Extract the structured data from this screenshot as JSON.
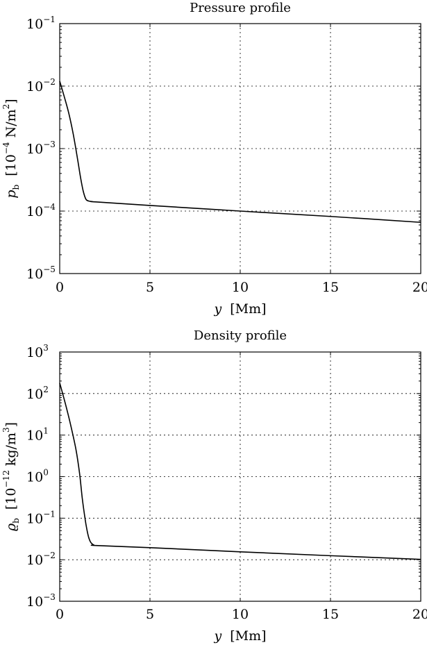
{
  "chart_data": [
    {
      "type": "line",
      "title": "Pressure profile",
      "xlabel": "y",
      "xlabel_unit": "[Mm]",
      "ylabel_symbol": "p",
      "ylabel_subscript": "b",
      "ylabel_unit_prefix": "[10",
      "ylabel_unit_exp": "−4",
      "ylabel_unit_mid": " N/m",
      "ylabel_unit_exp2": "2",
      "ylabel_unit_suffix": "]",
      "yscale": "log",
      "xlim": [
        0,
        20
      ],
      "ylim_exp": [
        -5,
        -1
      ],
      "grid": true,
      "xticks": [
        0,
        5,
        10,
        15,
        20
      ],
      "yticks": [
        {
          "base": "10",
          "exp": "−5",
          "value": -5
        },
        {
          "base": "10",
          "exp": "−4",
          "value": -4
        },
        {
          "base": "10",
          "exp": "−3",
          "value": -3
        },
        {
          "base": "10",
          "exp": "−2",
          "value": -2
        },
        {
          "base": "10",
          "exp": "−1",
          "value": -1
        }
      ],
      "series": [
        {
          "x": [
            0,
            0.25,
            0.5,
            0.75,
            1.0,
            1.15,
            1.3,
            1.45,
            1.6,
            1.8,
            2,
            5,
            10,
            15,
            20
          ],
          "y": [
            0.012,
            0.0068,
            0.0037,
            0.0017,
            0.00065,
            0.00035,
            0.00021,
            0.000155,
            0.000145,
            0.000142,
            0.00014,
            0.000123,
            0.0001,
            8.2e-05,
            6.6e-05
          ]
        }
      ]
    },
    {
      "type": "line",
      "title": "Density profile",
      "xlabel": "y",
      "xlabel_unit": "[Mm]",
      "ylabel_symbol": "ϱ",
      "ylabel_subscript": "b",
      "ylabel_unit_prefix": "[10",
      "ylabel_unit_exp": "−12",
      "ylabel_unit_mid": " kg/m",
      "ylabel_unit_exp2": "3",
      "ylabel_unit_suffix": "]",
      "yscale": "log",
      "xlim": [
        0,
        20
      ],
      "ylim_exp": [
        -3,
        3
      ],
      "grid": true,
      "xticks": [
        0,
        5,
        10,
        15,
        20
      ],
      "yticks": [
        {
          "base": "10",
          "exp": "−3",
          "value": -3
        },
        {
          "base": "10",
          "exp": "−2",
          "value": -2
        },
        {
          "base": "10",
          "exp": "−1",
          "value": -1
        },
        {
          "base": "10",
          "exp": "0",
          "value": 0
        },
        {
          "base": "10",
          "exp": "1",
          "value": 1
        },
        {
          "base": "10",
          "exp": "2",
          "value": 2
        },
        {
          "base": "10",
          "exp": "3",
          "value": 3
        }
      ],
      "series": [
        {
          "x": [
            0,
            0.3,
            0.6,
            0.9,
            1.1,
            1.25,
            1.4,
            1.5,
            1.6,
            1.7,
            1.8,
            1.9,
            2,
            5,
            10,
            15,
            20
          ],
          "y": [
            180,
            60,
            18,
            4.5,
            1.2,
            0.3,
            0.1,
            0.055,
            0.035,
            0.027,
            0.024,
            0.0225,
            0.022,
            0.0195,
            0.0155,
            0.0125,
            0.0102
          ]
        }
      ]
    }
  ]
}
